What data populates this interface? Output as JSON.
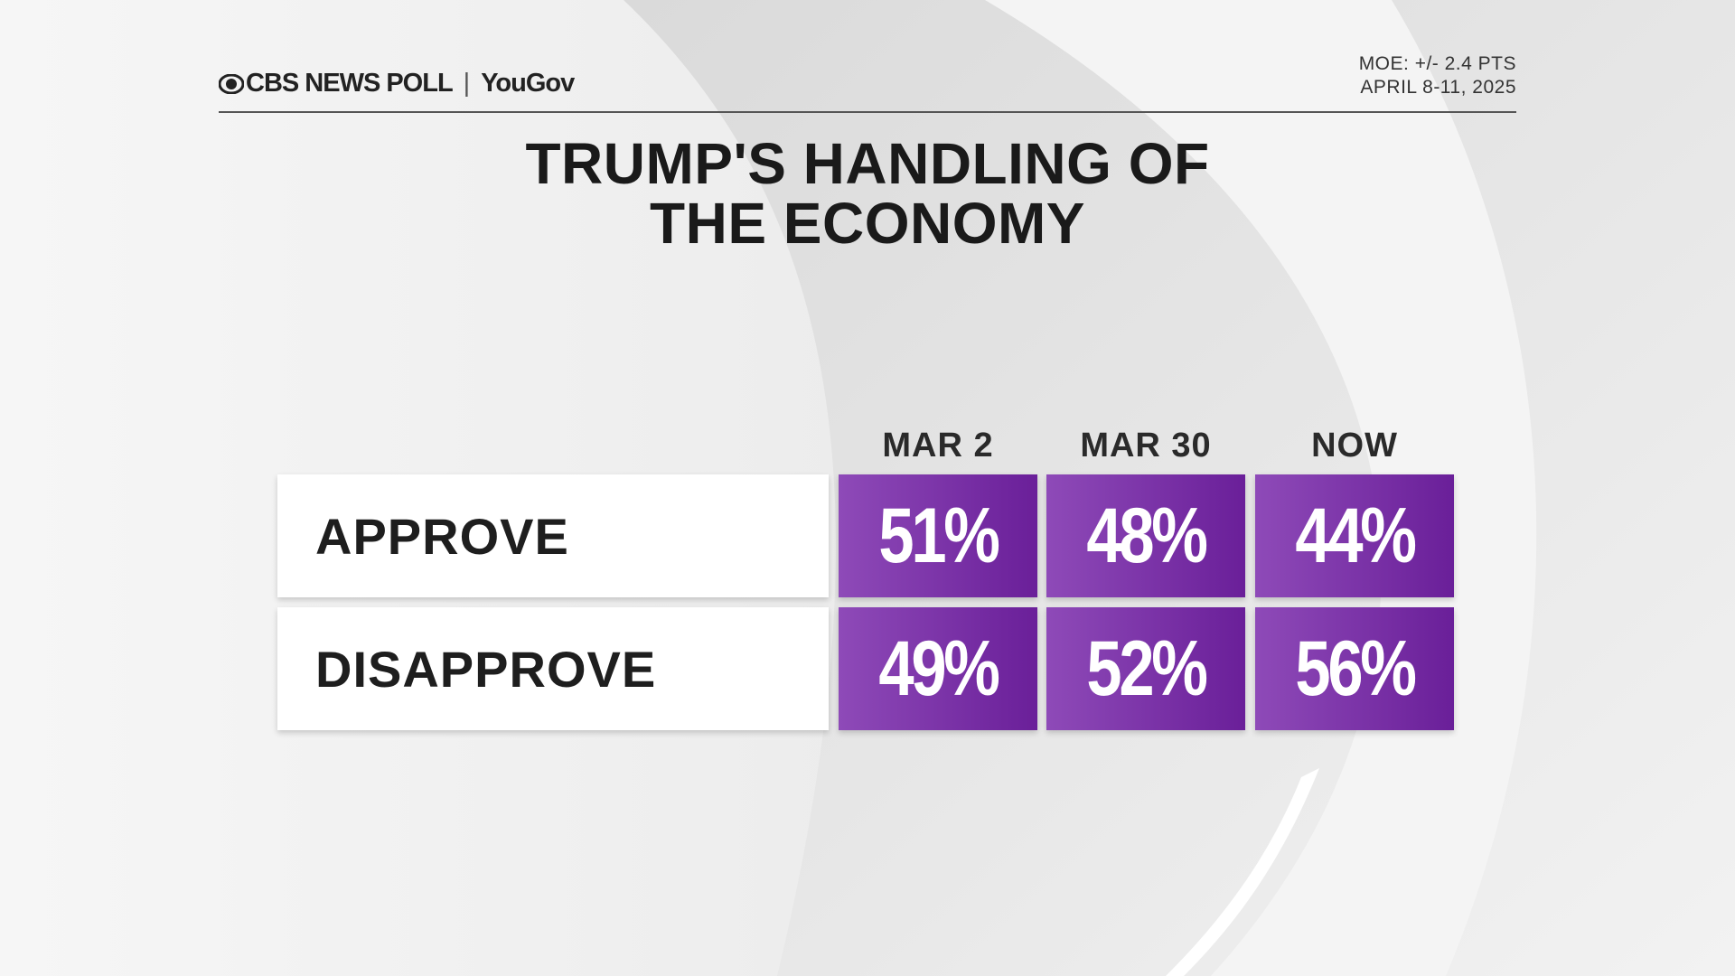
{
  "header": {
    "brand": "CBS NEWS POLL",
    "partner": "YouGov",
    "moe": "MOE: +/- 2.4 PTS",
    "dates": "APRIL 8-11, 2025"
  },
  "title": [
    "TRUMP'S HANDLING OF",
    "THE ECONOMY"
  ],
  "table": {
    "columns": [
      "MAR 2",
      "MAR 30",
      "NOW"
    ],
    "rows": [
      {
        "label": "APPROVE",
        "cells": [
          "51%",
          "48%",
          "44%"
        ]
      },
      {
        "label": "DISAPPROVE",
        "cells": [
          "49%",
          "52%",
          "56%"
        ]
      }
    ]
  }
}
